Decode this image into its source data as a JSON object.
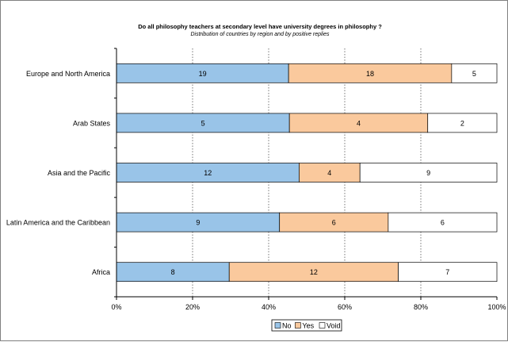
{
  "chart_data": {
    "type": "bar",
    "orientation": "horizontal",
    "stacked": "percent",
    "title": "Do all philosophy teachers at secondary level have university degrees in philosophy ?",
    "subtitle": "Distribution of countries by region and by positive replies",
    "categories": [
      "Europe and North America",
      "Arab States",
      "Asia and the Pacific",
      "Latin America and the Caribbean",
      "Africa"
    ],
    "series": [
      {
        "name": "No",
        "values": [
          19,
          5,
          12,
          9,
          8
        ],
        "color": "#99c4e8"
      },
      {
        "name": "Yes",
        "values": [
          18,
          4,
          4,
          6,
          12
        ],
        "color": "#fac99d"
      },
      {
        "name": "Void",
        "values": [
          5,
          2,
          9,
          6,
          7
        ],
        "color": "#ffffff"
      }
    ],
    "xaxis_ticks": [
      "0%",
      "20%",
      "40%",
      "60%",
      "80%",
      "100%"
    ],
    "xlim": [
      0,
      100
    ],
    "grid": "vertical dotted",
    "legend_position": "bottom"
  }
}
